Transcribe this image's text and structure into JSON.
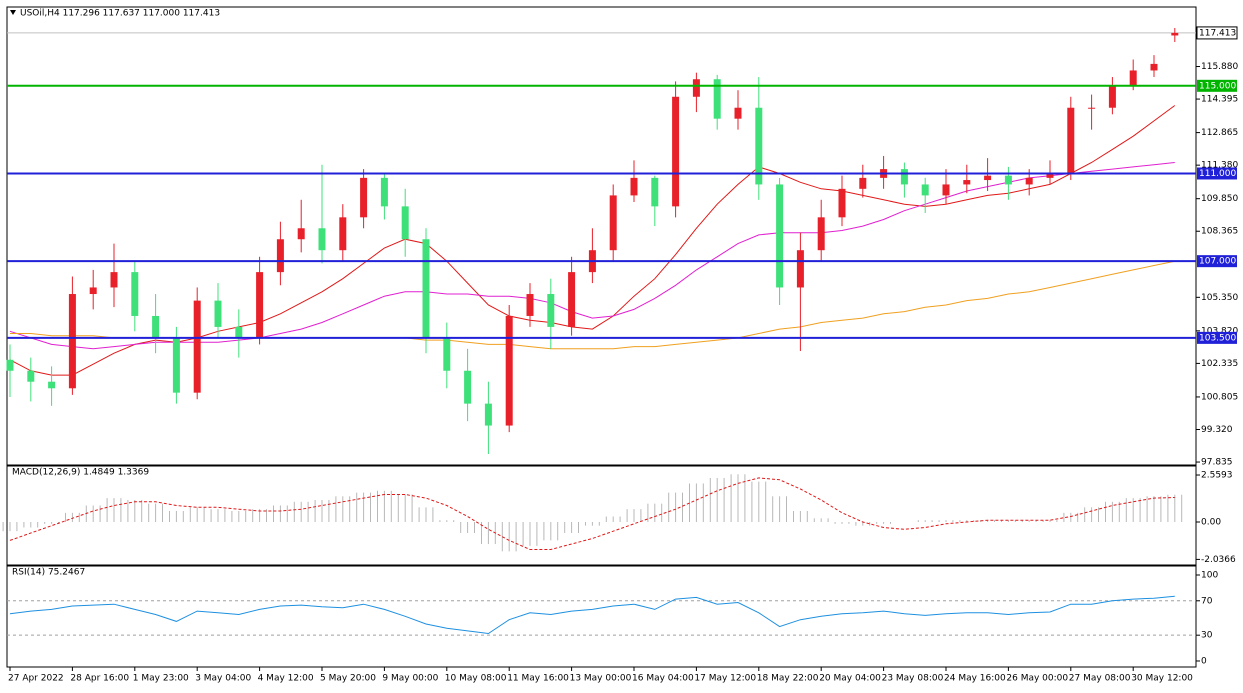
{
  "chart_data": [
    {
      "type": "candlestick",
      "title": "USOil,H4  117.296 117.637 117.000 117.413",
      "categories": [
        "27 Apr 2022",
        null,
        null,
        "28 Apr 16:00",
        null,
        null,
        "1 May 23:00",
        null,
        null,
        "3 May 04:00",
        null,
        null,
        "4 May 12:00",
        null,
        null,
        "5 May 20:00",
        null,
        null,
        "9 May 00:00",
        null,
        null,
        "10 May 08:00",
        null,
        null,
        "11 May 16:00",
        null,
        null,
        "13 May 00:00",
        null,
        null,
        "16 May 04:00",
        null,
        null,
        "17 May 12:00",
        null,
        null,
        "18 May 22:00",
        null,
        null,
        "20 May 04:00",
        null,
        null,
        "23 May 08:00",
        null,
        null,
        "24 May 16:00",
        null,
        null,
        "26 May 00:00",
        null,
        null,
        "27 May 08:00",
        null,
        null,
        "30 May 12:00",
        null,
        null
      ],
      "open": [
        102.5,
        102,
        101.5,
        101.2,
        105.5,
        105.8,
        106.5,
        104.5,
        103.5,
        101,
        105.2,
        104,
        103.5,
        106.5,
        108,
        108.5,
        107.5,
        109,
        110.8,
        109.5,
        108,
        103.5,
        102,
        100.5,
        99.5,
        104.5,
        105.5,
        104,
        106.5,
        107.5,
        110,
        110.8,
        109.5,
        114.5,
        115.3,
        113.5,
        114,
        110.5,
        105.8,
        107.5,
        109,
        110.3,
        110.8,
        111.2,
        110.5,
        110,
        110.5,
        110.7,
        110.9,
        110.5,
        110.8,
        111,
        114,
        114,
        115,
        115.7,
        117.296
      ],
      "high": [
        103.2,
        102.6,
        102.2,
        106.3,
        106.6,
        107.8,
        107,
        105.5,
        104,
        105.8,
        106,
        104.8,
        107.2,
        108.8,
        109.8,
        111.4,
        109.6,
        111.2,
        111,
        110.3,
        108.5,
        104.2,
        103,
        101.5,
        105,
        106,
        106.2,
        107.2,
        108.5,
        110.5,
        111.6,
        110.9,
        115.2,
        115.6,
        115.5,
        114.8,
        115.4,
        110.8,
        108.3,
        109.8,
        110.9,
        111.4,
        111.8,
        111.5,
        110.8,
        111.2,
        111.4,
        111.7,
        111.3,
        111.2,
        111.6,
        114.5,
        114.6,
        115.4,
        116.2,
        116.4,
        117.637
      ],
      "low": [
        100.8,
        100.6,
        100.4,
        100.9,
        104.8,
        104.9,
        103.8,
        102.8,
        100.5,
        100.7,
        103.5,
        102.6,
        103.2,
        105.9,
        107.4,
        106.9,
        107,
        108.5,
        108.9,
        107.2,
        102.8,
        101.2,
        99.7,
        98.2,
        99.2,
        104,
        103,
        103.6,
        106,
        107,
        109.7,
        108.6,
        109,
        113.8,
        113,
        113,
        109.8,
        105,
        102.9,
        107,
        108.6,
        109.9,
        110.3,
        109.9,
        109.2,
        109.6,
        110.1,
        110.2,
        109.8,
        110,
        110.5,
        110.7,
        113,
        113.7,
        114.8,
        115.4,
        117
      ],
      "close": [
        102,
        101.5,
        101.2,
        105.5,
        105.8,
        106.5,
        104.5,
        103.5,
        101,
        105.2,
        104,
        103.5,
        106.5,
        108,
        108.5,
        107.5,
        109,
        110.8,
        109.5,
        108,
        103.5,
        102,
        100.5,
        99.5,
        104.5,
        105.5,
        104,
        106.5,
        107.5,
        110,
        110.8,
        109.5,
        114.5,
        115.3,
        113.5,
        114,
        110.5,
        105.8,
        107.5,
        109,
        110.3,
        110.8,
        111.2,
        110.5,
        110,
        110.5,
        110.7,
        110.9,
        110.5,
        110.8,
        111,
        114,
        114,
        115,
        115.7,
        116,
        117.413
      ],
      "up_color": "#e8202a",
      "down_color": "#3ee07a",
      "overlays": [
        {
          "color": "#e01818",
          "values": [
            102.5,
            102,
            101.8,
            101.8,
            102.3,
            102.8,
            103.2,
            103.4,
            103.3,
            103.5,
            103.8,
            104,
            104.2,
            104.6,
            105.1,
            105.6,
            106.2,
            106.9,
            107.6,
            108,
            107.8,
            107,
            106,
            105,
            104.5,
            104.3,
            104.2,
            104,
            103.9,
            104.5,
            105.4,
            106.2,
            107.3,
            108.5,
            109.6,
            110.5,
            111.3,
            111,
            110.6,
            110.3,
            110.2,
            110,
            109.8,
            109.6,
            109.5,
            109.6,
            109.8,
            110,
            110.1,
            110.3,
            110.5,
            111,
            111.5,
            112.1,
            112.7,
            113.4,
            114.1
          ]
        },
        {
          "color": "#e020d0",
          "values": [
            103.8,
            103.5,
            103.2,
            103.1,
            103,
            103.1,
            103.2,
            103.3,
            103.3,
            103.3,
            103.3,
            103.4,
            103.5,
            103.7,
            103.9,
            104.2,
            104.6,
            105,
            105.4,
            105.6,
            105.6,
            105.5,
            105.5,
            105.4,
            105.4,
            105.3,
            105.1,
            104.7,
            104.4,
            104.5,
            104.8,
            105.3,
            105.9,
            106.6,
            107.2,
            107.8,
            108.2,
            108.3,
            108.3,
            108.3,
            108.4,
            108.6,
            108.9,
            109.3,
            109.6,
            109.9,
            110.2,
            110.4,
            110.6,
            110.8,
            110.9,
            111,
            111.1,
            111.2,
            111.3,
            111.4,
            111.5
          ]
        },
        {
          "color": "#f0a020",
          "values": [
            103.7,
            103.7,
            103.6,
            103.6,
            103.6,
            103.5,
            103.5,
            103.5,
            103.5,
            103.5,
            103.5,
            103.5,
            103.5,
            103.5,
            103.5,
            103.5,
            103.5,
            103.5,
            103.5,
            103.5,
            103.4,
            103.4,
            103.3,
            103.2,
            103.2,
            103.1,
            103,
            103,
            103,
            103,
            103.1,
            103.1,
            103.2,
            103.3,
            103.4,
            103.5,
            103.7,
            103.9,
            104,
            104.2,
            104.3,
            104.4,
            104.6,
            104.7,
            104.9,
            105,
            105.2,
            105.3,
            105.5,
            105.6,
            105.8,
            106,
            106.2,
            106.4,
            106.6,
            106.8,
            107
          ]
        }
      ],
      "levels": [
        {
          "value": 115,
          "label": "115.000",
          "color": "#00b400"
        },
        {
          "value": 111,
          "label": "111.000",
          "color": "#2020d8"
        },
        {
          "value": 107,
          "label": "107.000",
          "color": "#2020d8"
        },
        {
          "value": 103.5,
          "label": "103.500",
          "color": "#2020d8"
        }
      ],
      "last_price": 117.413,
      "ylim": [
        97.7,
        118.55
      ],
      "yticks": [
        {
          "value": 115.88,
          "label": "115.880"
        },
        114.395,
        112.865,
        {
          "value": 111.38,
          "label": "111.380"
        },
        {
          "value": 109.85,
          "label": "109.850"
        },
        108.365,
        {
          "value": 105.35,
          "label": "105.350"
        },
        {
          "value": 103.82,
          "label": "103.820"
        },
        102.335,
        100.805,
        {
          "value": 99.32,
          "label": "99.320"
        },
        97.835
      ]
    },
    {
      "type": "macd",
      "title": "MACD(12,26,9) 1.4849 1.3369",
      "histogram": {
        "color": "#b8b8b8",
        "values": [
          -0.5,
          -0.3,
          -0.1,
          0.5,
          0.9,
          1.3,
          1.2,
          1,
          0.6,
          0.8,
          0.7,
          0.6,
          0.7,
          0.9,
          1.1,
          1.2,
          1.4,
          1.6,
          1.7,
          1.5,
          0.8,
          0.1,
          -0.6,
          -1.2,
          -1.6,
          -1.3,
          -1,
          -0.6,
          -0.2,
          0.3,
          0.7,
          1,
          1.6,
          2.1,
          2.4,
          2.6,
          2.2,
          1.4,
          0.6,
          0.2,
          -0.1,
          -0.2,
          -0.1,
          0,
          0.1,
          0.1,
          0.1,
          0.1,
          0.1,
          0.1,
          0.1,
          0.5,
          0.8,
          1.1,
          1.3,
          1.4,
          1.4849
        ]
      },
      "signal": {
        "color": "#e01818",
        "values": [
          -1,
          -0.6,
          -0.2,
          0.2,
          0.6,
          0.9,
          1.1,
          1.1,
          0.9,
          0.8,
          0.8,
          0.7,
          0.6,
          0.6,
          0.7,
          0.9,
          1.1,
          1.3,
          1.5,
          1.5,
          1.3,
          0.9,
          0.3,
          -0.4,
          -1,
          -1.5,
          -1.5,
          -1.2,
          -0.9,
          -0.5,
          -0.1,
          0.3,
          0.7,
          1.2,
          1.7,
          2.1,
          2.4,
          2.3,
          1.8,
          1.2,
          0.5,
          0,
          -0.3,
          -0.4,
          -0.3,
          -0.1,
          0,
          0.1,
          0.1,
          0.1,
          0.1,
          0.3,
          0.6,
          0.9,
          1.1,
          1.3,
          1.3369
        ]
      },
      "ylim": [
        -2.342,
        2.996
      ],
      "yticks": [
        2.5593,
        {
          "value": 0,
          "label": "0.00"
        },
        -2.0366
      ]
    },
    {
      "type": "line",
      "title": "RSI(14) 75.2467",
      "color": "#1e90e0",
      "values": [
        55,
        58,
        60,
        64,
        65,
        66,
        60,
        54,
        46,
        58,
        56,
        54,
        60,
        64,
        65,
        63,
        62,
        66,
        60,
        52,
        43,
        38,
        35,
        32,
        48,
        56,
        54,
        58,
        60,
        64,
        66,
        60,
        72,
        74,
        66,
        68,
        56,
        40,
        48,
        52,
        55,
        56,
        58,
        55,
        53,
        55,
        56,
        56,
        54,
        56,
        57,
        66,
        66,
        70,
        72,
        73,
        75.2467
      ],
      "levels": [
        70,
        30
      ],
      "ylim": [
        -7,
        109.3
      ],
      "yticks": [
        100,
        70,
        30,
        0
      ]
    }
  ]
}
